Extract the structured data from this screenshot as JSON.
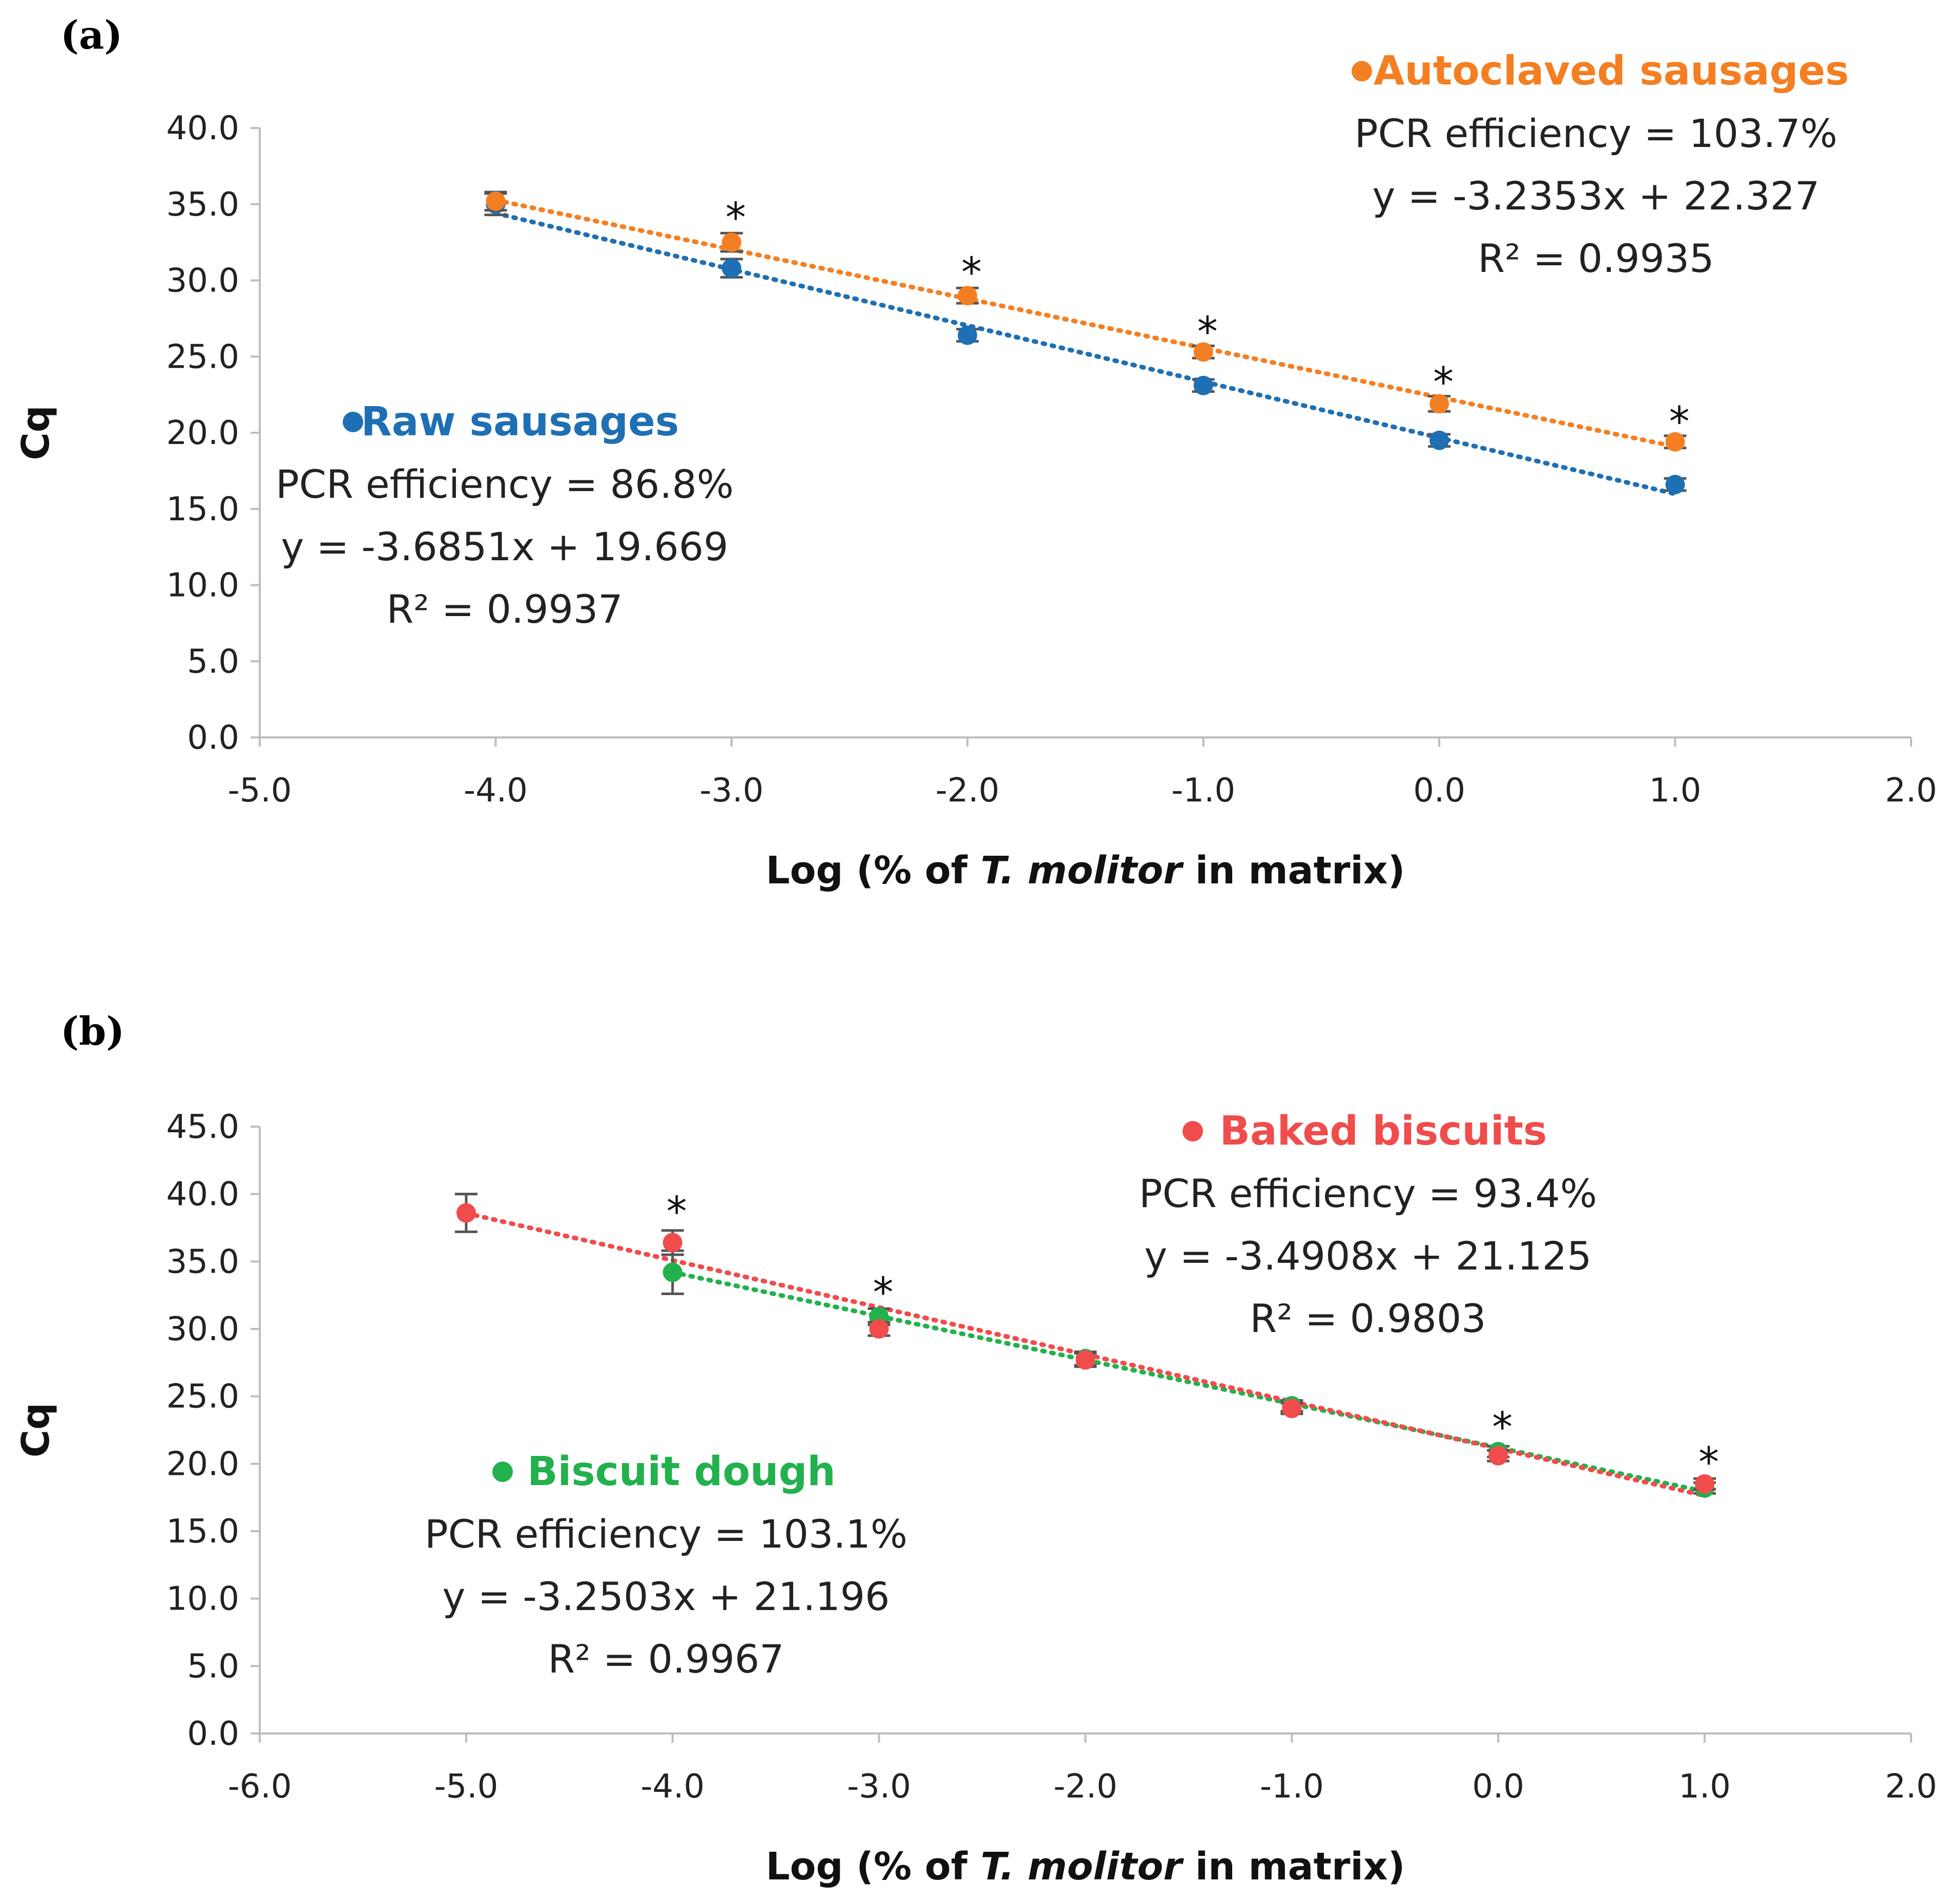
{
  "chart_data": [
    {
      "panel_label": "(a)",
      "type": "scatter",
      "xlabel_prefix": "Log (% of ",
      "xlabel_italic": "T. molitor",
      "xlabel_suffix": " in matrix)",
      "ylabel": "Cq",
      "xlim": [
        -5.0,
        2.0
      ],
      "ylim": [
        0.0,
        40.0
      ],
      "xticks": [
        -5.0,
        -4.0,
        -3.0,
        -2.0,
        -1.0,
        0.0,
        1.0,
        2.0
      ],
      "yticks": [
        0.0,
        5.0,
        10.0,
        15.0,
        20.0,
        25.0,
        30.0,
        35.0,
        40.0
      ],
      "series": [
        {
          "name": "Raw sausages",
          "color": "#1f6fb4",
          "x": [
            -4.0,
            -3.0,
            -2.0,
            -1.0,
            0.0,
            1.0
          ],
          "y": [
            35.0,
            30.8,
            26.4,
            23.1,
            19.5,
            16.6
          ],
          "err": [
            0.7,
            0.6,
            0.4,
            0.4,
            0.4,
            0.4
          ],
          "trend": {
            "slope": -3.6851,
            "intercept": 19.669
          },
          "annotation": [
            "PCR efficiency = 86.8%",
            "y = -3.6851x + 19.669",
            "R² = 0.9937"
          ]
        },
        {
          "name": "Autoclaved sausages",
          "color": "#f47f22",
          "x": [
            -4.0,
            -3.0,
            -2.0,
            -1.0,
            0.0,
            1.0
          ],
          "y": [
            35.2,
            32.5,
            29.0,
            25.3,
            21.9,
            19.4
          ],
          "err": [
            0.6,
            0.6,
            0.5,
            0.4,
            0.5,
            0.4
          ],
          "trend": {
            "slope": -3.2353,
            "intercept": 22.327
          },
          "annotation": [
            "PCR efficiency = 103.7%",
            "y = -3.2353x + 22.327",
            "R² = 0.9935"
          ]
        }
      ],
      "significance": {
        "symbol": "*",
        "x": [
          -3.0,
          -2.0,
          -1.0,
          0.0,
          1.0
        ],
        "y": [
          34.2,
          30.6,
          26.7,
          23.4,
          20.8
        ]
      }
    },
    {
      "panel_label": "(b)",
      "type": "scatter",
      "xlabel_prefix": "Log (% of ",
      "xlabel_italic": "T. molitor",
      "xlabel_suffix": " in matrix)",
      "ylabel": "Cq",
      "xlim": [
        -6.0,
        2.0
      ],
      "ylim": [
        0.0,
        45.0
      ],
      "xticks": [
        -6.0,
        -5.0,
        -4.0,
        -3.0,
        -2.0,
        -1.0,
        0.0,
        1.0,
        2.0
      ],
      "yticks": [
        0.0,
        5.0,
        10.0,
        15.0,
        20.0,
        25.0,
        30.0,
        35.0,
        40.0,
        45.0
      ],
      "series": [
        {
          "name": "Biscuit dough",
          "color": "#22b14c",
          "x": [
            -4.0,
            -3.0,
            -2.0,
            -1.0,
            0.0,
            1.0
          ],
          "y": [
            34.2,
            30.9,
            27.8,
            24.3,
            20.9,
            18.2
          ],
          "err": [
            1.6,
            0.6,
            0.5,
            0.4,
            0.4,
            0.4
          ],
          "trend": {
            "slope": -3.2503,
            "intercept": 21.196
          },
          "annotation": [
            "PCR efficiency = 103.1%",
            "y = -3.2503x + 21.196",
            "R² = 0.9967"
          ]
        },
        {
          "name": "Baked biscuits",
          "color": "#f04c4c",
          "x": [
            -5.0,
            -4.0,
            -3.0,
            -2.0,
            -1.0,
            0.0,
            1.0
          ],
          "y": [
            38.6,
            36.4,
            30.0,
            27.7,
            24.1,
            20.6,
            18.5
          ],
          "err": [
            1.4,
            0.9,
            0.5,
            0.5,
            0.4,
            0.4,
            0.4
          ],
          "trend": {
            "slope": -3.4908,
            "intercept": 21.125
          },
          "annotation": [
            "PCR efficiency = 93.4%",
            "y = -3.4908x + 21.125",
            "R² = 0.9803"
          ]
        }
      ],
      "significance": {
        "symbol": "*",
        "x": [
          -4.0,
          0.0,
          1.0,
          -3.0
        ],
        "y": [
          38.8,
          22.8,
          20.2,
          32.8
        ]
      }
    }
  ]
}
